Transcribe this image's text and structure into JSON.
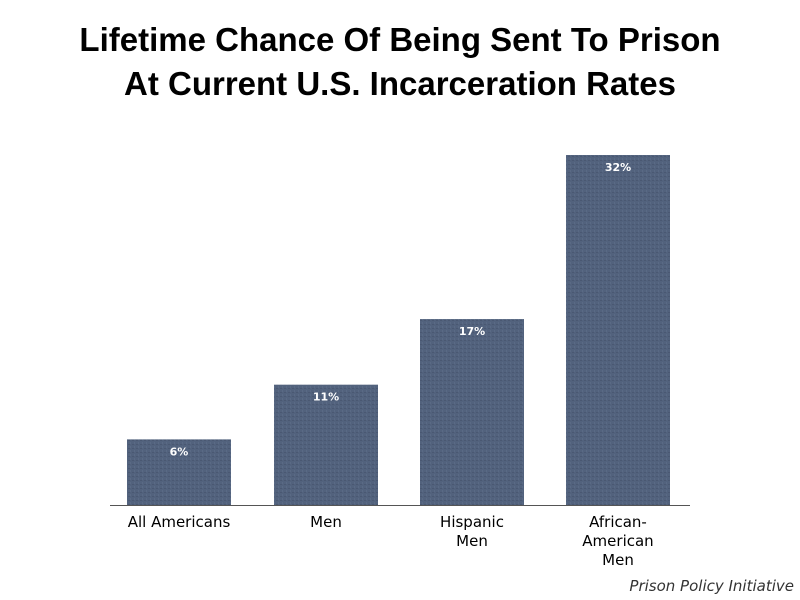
{
  "title_lines": [
    "Lifetime Chance Of Being Sent To Prison",
    "At Current U.S. Incarceration Rates"
  ],
  "source": "Prison Policy Initiative",
  "colors": {
    "bar": "#52627d",
    "bar_texture": "#4a5872",
    "axis": "#555555",
    "data_label": "#ffffff",
    "tick_label": "#000000"
  },
  "chart_data": {
    "type": "bar",
    "title": "Lifetime Chance Of Being Sent To Prison At Current U.S. Incarceration Rates",
    "categories": [
      [
        "All Americans"
      ],
      [
        "Men"
      ],
      [
        "Hispanic",
        "Men"
      ],
      [
        "African-",
        "American",
        "Men"
      ]
    ],
    "values": [
      6,
      11,
      17,
      32
    ],
    "data_labels": [
      "6%",
      "11%",
      "17%",
      "32%"
    ],
    "unit": "%",
    "ylim": [
      0,
      32
    ],
    "grid": false,
    "legend": "none"
  }
}
